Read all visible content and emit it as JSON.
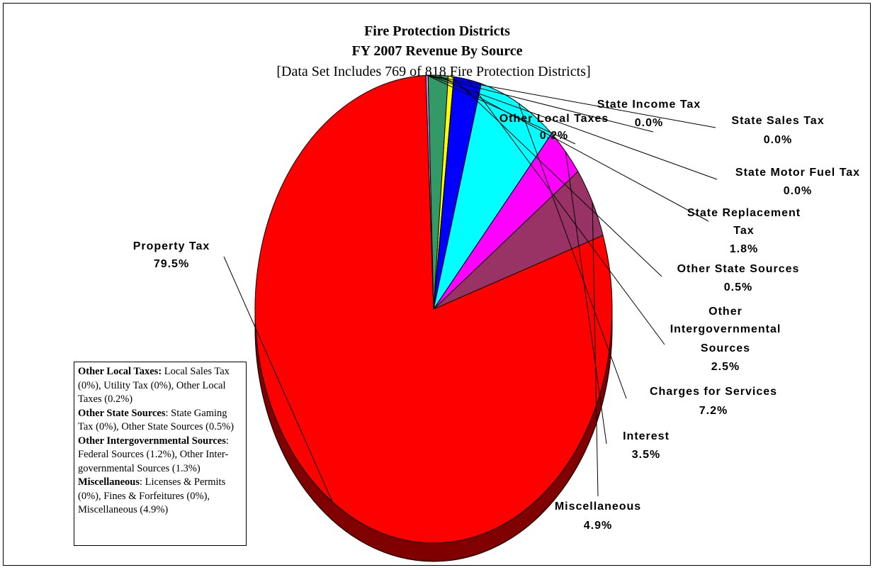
{
  "chart_data": {
    "type": "pie",
    "title": "Fire Protection Districts",
    "subtitle": "FY 2007 Revenue By Source",
    "note_line": "[Data Set Includes 769 of 818 Fire Protection Districts]",
    "slices": [
      {
        "name": "Property Tax",
        "value": 79.5,
        "pct_label": "79.5%",
        "color": "#ff0000",
        "side_color": "#800000"
      },
      {
        "name": "Other Local Taxes",
        "value": 0.2,
        "pct_label": "0.2%",
        "color": "#cc99ff",
        "side_color": "#664c80"
      },
      {
        "name": "State Income Tax",
        "value": 0.0,
        "pct_label": "0.0%",
        "color": "#ffffff",
        "side_color": "#808080"
      },
      {
        "name": "State Sales Tax",
        "value": 0.0,
        "pct_label": "0.0%",
        "color": "#ffffff",
        "side_color": "#808080"
      },
      {
        "name": "State Motor Fuel Tax",
        "value": 0.0,
        "pct_label": "0.0%",
        "color": "#ffffff",
        "side_color": "#808080"
      },
      {
        "name": "State Replacement Tax",
        "value": 1.8,
        "pct_label": "1.8%",
        "color": "#339966",
        "side_color": "#1a4d33"
      },
      {
        "name": "Other State Sources",
        "value": 0.5,
        "pct_label": "0.5%",
        "color": "#ffff00",
        "side_color": "#808000"
      },
      {
        "name": "Other Intergovernmental Sources",
        "value": 2.5,
        "pct_label": "2.5%",
        "color": "#0000ff",
        "side_color": "#000080"
      },
      {
        "name": "Charges for Services",
        "value": 7.2,
        "pct_label": "7.2%",
        "color": "#00ffff",
        "side_color": "#008080"
      },
      {
        "name": "Interest",
        "value": 3.5,
        "pct_label": "3.5%",
        "color": "#ff00ff",
        "side_color": "#800080"
      },
      {
        "name": "Miscellaneous",
        "value": 4.9,
        "pct_label": "4.9%",
        "color": "#993366",
        "side_color": "#4d1a33"
      }
    ],
    "labels": {
      "property_tax": {
        "l1": "Property Tax",
        "pct": "79.5%"
      },
      "other_local": {
        "l1": "Other Local Taxes",
        "pct": "0.2%"
      },
      "state_income": {
        "l1": "State Income Tax",
        "pct": "0.0%"
      },
      "state_sales": {
        "l1": "State Sales Tax",
        "pct": "0.0%"
      },
      "state_motor": {
        "l1": "State Motor Fuel Tax",
        "pct": "0.0%"
      },
      "state_repl": {
        "l1": "State Replacement",
        "l2": "Tax",
        "pct": "1.8%"
      },
      "other_state": {
        "l1": "Other State Sources",
        "pct": "0.5%"
      },
      "other_intergov": {
        "l1": "Other",
        "l2": "Intergovernmental",
        "l3": "Sources",
        "pct": "2.5%"
      },
      "charges": {
        "l1": "Charges for Services",
        "pct": "7.2%"
      },
      "interest": {
        "l1": "Interest",
        "pct": "3.5%"
      },
      "misc": {
        "l1": "Miscellaneous",
        "pct": "4.9%"
      }
    },
    "legend_note": {
      "local_head": "Other Local Taxes:",
      "local_text": " Local Sales Tax (0%), Utility Tax (0%), Other Local Taxes (0.2%)",
      "state_head": "Other State Sources",
      "state_text": ": State Gaming Tax (0%), Other State Sources (0.5%)",
      "intergov_head": "Other Intergovernmental Sources",
      "intergov_text": ": Federal Sources (1.2%), Other Inter-governmental Sources (1.3%)",
      "misc_head": "Miscellaneous",
      "misc_text": ":  Licenses & Permits (0%), Fines & Forfeitures (0%), Miscellaneous (4.9%)"
    }
  }
}
